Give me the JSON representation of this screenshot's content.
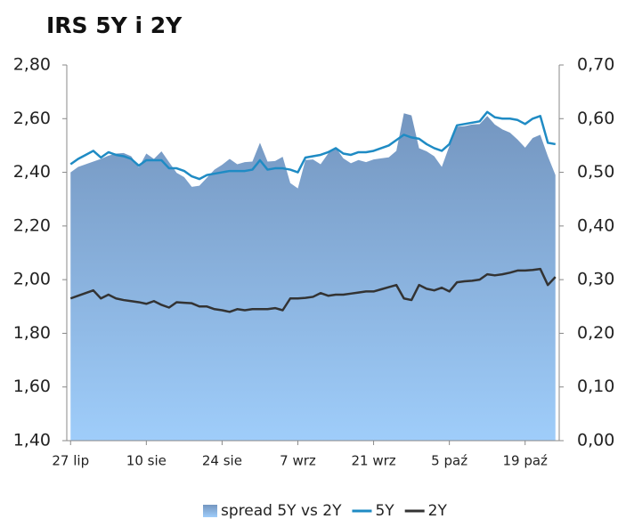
{
  "chart_data": {
    "type": "line",
    "title": "IRS 5Y i 2Y",
    "categories": [
      "27 lip",
      null,
      null,
      null,
      null,
      null,
      null,
      null,
      null,
      null,
      "10 sie",
      null,
      null,
      null,
      null,
      null,
      null,
      null,
      null,
      null,
      "24 sie",
      null,
      null,
      null,
      null,
      null,
      null,
      null,
      null,
      null,
      "7 wrz",
      null,
      null,
      null,
      null,
      null,
      null,
      null,
      null,
      null,
      "21 wrz",
      null,
      null,
      null,
      null,
      null,
      null,
      null,
      null,
      null,
      "5 paź",
      null,
      null,
      null,
      null,
      null,
      null,
      null,
      null,
      null,
      "19 paź",
      null,
      null,
      null,
      null
    ],
    "ylim": [
      1.4,
      2.8
    ],
    "yticks": [
      {
        "value": 1.4,
        "label": "1,40"
      },
      {
        "value": 1.6,
        "label": "1,60"
      },
      {
        "value": 1.8,
        "label": "1,80"
      },
      {
        "value": 2.0,
        "label": "2,00"
      },
      {
        "value": 2.2,
        "label": "2,20"
      },
      {
        "value": 2.4,
        "label": "2,40"
      },
      {
        "value": 2.6,
        "label": "2,60"
      },
      {
        "value": 2.8,
        "label": "2,80"
      }
    ],
    "y2lim": [
      0,
      0.7
    ],
    "y2ticks": [
      {
        "value": 0,
        "label": "0,00"
      },
      {
        "value": 0.1,
        "label": "0,10"
      },
      {
        "value": 0.2,
        "label": "0,20"
      },
      {
        "value": 0.3,
        "label": "0,30"
      },
      {
        "value": 0.4,
        "label": "0,40"
      },
      {
        "value": 0.5,
        "label": "0,50"
      },
      {
        "value": 0.6,
        "label": "0,60"
      },
      {
        "value": 0.7,
        "label": "0,70"
      }
    ],
    "grid": false,
    "legend": "bottom",
    "series": [
      {
        "name": "spread 5Y vs 2Y",
        "type": "area",
        "axis": "y2",
        "color": "#7496c0",
        "values": [
          0.5,
          0.51,
          0.515,
          0.52,
          0.525,
          0.531,
          0.535,
          0.536,
          0.53,
          0.509,
          0.535,
          0.525,
          0.539,
          0.519,
          0.499,
          0.491,
          0.473,
          0.475,
          0.49,
          0.505,
          0.514,
          0.525,
          0.515,
          0.519,
          0.52,
          0.555,
          0.52,
          0.521,
          0.529,
          0.48,
          0.47,
          0.523,
          0.524,
          0.515,
          0.535,
          0.546,
          0.526,
          0.517,
          0.523,
          0.519,
          0.524,
          0.526,
          0.528,
          0.54,
          0.61,
          0.606,
          0.545,
          0.539,
          0.53,
          0.51,
          0.549,
          0.585,
          0.586,
          0.589,
          0.59,
          0.605,
          0.589,
          0.58,
          0.574,
          0.561,
          0.546,
          0.564,
          0.57,
          0.53,
          0.495
        ]
      },
      {
        "name": "5Y",
        "type": "line",
        "axis": "y",
        "color": "#1f8bc4",
        "values": [
          2.43,
          2.45,
          2.465,
          2.48,
          2.455,
          2.475,
          2.465,
          2.46,
          2.45,
          2.425,
          2.445,
          2.445,
          2.445,
          2.415,
          2.415,
          2.405,
          2.385,
          2.375,
          2.39,
          2.395,
          2.4,
          2.405,
          2.405,
          2.405,
          2.41,
          2.445,
          2.41,
          2.415,
          2.415,
          2.41,
          2.4,
          2.455,
          2.46,
          2.465,
          2.475,
          2.49,
          2.47,
          2.465,
          2.475,
          2.475,
          2.48,
          2.49,
          2.5,
          2.52,
          2.54,
          2.53,
          2.525,
          2.505,
          2.49,
          2.48,
          2.505,
          2.575,
          2.58,
          2.585,
          2.59,
          2.625,
          2.605,
          2.6,
          2.6,
          2.595,
          2.58,
          2.6,
          2.61,
          2.51,
          2.505
        ]
      },
      {
        "name": "2Y",
        "type": "line",
        "axis": "y",
        "color": "#333333",
        "values": [
          1.93,
          1.94,
          1.95,
          1.96,
          1.93,
          1.944,
          1.93,
          1.924,
          1.92,
          1.916,
          1.91,
          1.92,
          1.906,
          1.896,
          1.916,
          1.914,
          1.912,
          1.9,
          1.9,
          1.89,
          1.886,
          1.88,
          1.89,
          1.886,
          1.89,
          1.89,
          1.89,
          1.894,
          1.886,
          1.93,
          1.93,
          1.932,
          1.936,
          1.95,
          1.94,
          1.944,
          1.944,
          1.948,
          1.952,
          1.956,
          1.956,
          1.964,
          1.972,
          1.98,
          1.93,
          1.924,
          1.98,
          1.966,
          1.96,
          1.97,
          1.956,
          1.99,
          1.994,
          1.996,
          2.0,
          2.02,
          2.016,
          2.02,
          2.026,
          2.034,
          2.034,
          2.036,
          2.04,
          1.98,
          2.01
        ]
      }
    ]
  }
}
